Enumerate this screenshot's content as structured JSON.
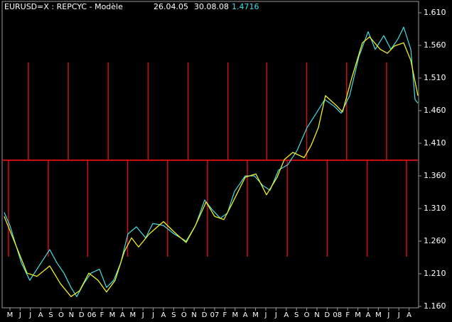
{
  "chart_data": {
    "type": "line",
    "title": "EURUSD=X : REPCYC - Modèle",
    "start_date": "26.04.05",
    "end_date": "30.08.08",
    "last_value": 1.4716,
    "xlim": [
      -0.76,
      39.93
    ],
    "ylim": [
      1.1578,
      1.6274
    ],
    "xticks": [
      {
        "value": 0,
        "label": "M"
      },
      {
        "value": 1,
        "label": "J"
      },
      {
        "value": 2,
        "label": "J"
      },
      {
        "value": 3,
        "label": "A"
      },
      {
        "value": 4,
        "label": "S"
      },
      {
        "value": 5,
        "label": "O"
      },
      {
        "value": 6,
        "label": "N"
      },
      {
        "value": 7,
        "label": "D"
      },
      {
        "value": 8,
        "label": "06"
      },
      {
        "value": 9,
        "label": "F"
      },
      {
        "value": 10,
        "label": "M"
      },
      {
        "value": 11,
        "label": "A"
      },
      {
        "value": 12,
        "label": "M"
      },
      {
        "value": 13,
        "label": "J"
      },
      {
        "value": 14,
        "label": "J"
      },
      {
        "value": 15,
        "label": "A"
      },
      {
        "value": 16,
        "label": "S"
      },
      {
        "value": 17,
        "label": "O"
      },
      {
        "value": 18,
        "label": "N"
      },
      {
        "value": 19,
        "label": "D"
      },
      {
        "value": 20,
        "label": "07"
      },
      {
        "value": 21,
        "label": "F"
      },
      {
        "value": 22,
        "label": "M"
      },
      {
        "value": 23,
        "label": "A"
      },
      {
        "value": 24,
        "label": "M"
      },
      {
        "value": 25,
        "label": "J"
      },
      {
        "value": 26,
        "label": "J"
      },
      {
        "value": 27,
        "label": "A"
      },
      {
        "value": 28,
        "label": "S"
      },
      {
        "value": 29,
        "label": "O"
      },
      {
        "value": 30,
        "label": "N"
      },
      {
        "value": 31,
        "label": "D"
      },
      {
        "value": 32,
        "label": "08"
      },
      {
        "value": 33,
        "label": "F"
      },
      {
        "value": 34,
        "label": "M"
      },
      {
        "value": 35,
        "label": "A"
      },
      {
        "value": 36,
        "label": "M"
      },
      {
        "value": 37,
        "label": "J"
      },
      {
        "value": 38,
        "label": "J"
      },
      {
        "value": 39,
        "label": "A"
      }
    ],
    "yticks": [
      {
        "value": 1.61,
        "label": "1.610"
      },
      {
        "value": 1.56,
        "label": "1.560"
      },
      {
        "value": 1.51,
        "label": "1.510"
      },
      {
        "value": 1.46,
        "label": "1.460"
      },
      {
        "value": 1.41,
        "label": "1.410"
      },
      {
        "value": 1.36,
        "label": "1.360"
      },
      {
        "value": 1.31,
        "label": "1.310"
      },
      {
        "value": 1.26,
        "label": "1.260"
      },
      {
        "value": 1.21,
        "label": "1.210"
      },
      {
        "value": 1.16,
        "label": "1.160"
      }
    ],
    "series": [
      {
        "color": "#40e0e8",
        "x": [
          -0.56,
          0,
          1.11,
          1.94,
          2.85,
          3.89,
          4.58,
          5.28,
          5.97,
          6.53,
          7.22,
          7.92,
          8.75,
          9.44,
          10.14,
          10.83,
          11.53,
          12.36,
          13.26,
          13.96,
          15.0,
          16.04,
          17.22,
          18.13,
          19.03,
          19.72,
          20.56,
          21.25,
          21.94,
          22.99,
          23.89,
          24.72,
          25.42,
          26.25,
          27.15,
          28.06,
          29.03,
          29.93,
          30.76,
          31.67,
          32.36,
          33.19,
          34.1,
          35.0,
          35.69,
          36.53,
          37.22,
          37.92,
          38.47,
          39.17,
          39.58,
          39.86
        ],
        "values": [
          1.304,
          1.284,
          1.227,
          1.2,
          1.222,
          1.247,
          1.227,
          1.211,
          1.189,
          1.175,
          1.195,
          1.211,
          1.217,
          1.189,
          1.2,
          1.227,
          1.271,
          1.282,
          1.265,
          1.287,
          1.284,
          1.271,
          1.26,
          1.284,
          1.323,
          1.309,
          1.295,
          1.303,
          1.336,
          1.36,
          1.36,
          1.345,
          1.338,
          1.369,
          1.377,
          1.399,
          1.434,
          1.456,
          1.477,
          1.467,
          1.456,
          1.483,
          1.543,
          1.581,
          1.554,
          1.575,
          1.554,
          1.57,
          1.588,
          1.554,
          1.477,
          1.4716
        ]
      },
      {
        "color": "#f0f020",
        "x": [
          -0.56,
          0.42,
          1.67,
          2.64,
          3.89,
          4.93,
          5.97,
          6.81,
          7.71,
          8.61,
          9.44,
          10.28,
          11.18,
          11.88,
          12.57,
          13.61,
          15.0,
          16.25,
          17.22,
          18.13,
          19.17,
          20.0,
          20.9,
          21.6,
          22.99,
          24.03,
          25.07,
          26.11,
          26.81,
          27.64,
          28.75,
          29.44,
          30.14,
          30.83,
          31.81,
          32.5,
          33.4,
          34.44,
          35.14,
          36.18,
          36.88,
          37.57,
          38.47,
          39.17,
          39.86
        ],
        "values": [
          1.298,
          1.26,
          1.211,
          1.206,
          1.222,
          1.195,
          1.175,
          1.184,
          1.211,
          1.2,
          1.182,
          1.2,
          1.244,
          1.265,
          1.251,
          1.271,
          1.29,
          1.271,
          1.258,
          1.284,
          1.32,
          1.298,
          1.293,
          1.314,
          1.358,
          1.363,
          1.331,
          1.358,
          1.385,
          1.396,
          1.388,
          1.407,
          1.434,
          1.483,
          1.469,
          1.458,
          1.51,
          1.564,
          1.573,
          1.554,
          1.548,
          1.559,
          1.564,
          1.537,
          1.483
        ]
      }
    ],
    "cycle_lines": {
      "color": "#d01010",
      "level": 1.384,
      "x": [
        -0.14,
        1.8,
        3.75,
        5.7,
        7.6,
        9.6,
        11.5,
        13.5,
        15.4,
        17.4,
        19.3,
        21.3,
        23.2,
        25.1,
        27.1,
        29.0,
        31.0,
        32.9,
        34.9,
        36.8,
        38.75
      ],
      "ends": [
        1.236,
        1.534,
        1.236,
        1.534,
        1.236,
        1.534,
        1.236,
        1.534,
        1.236,
        1.534,
        1.236,
        1.534,
        1.236,
        1.534,
        1.236,
        1.534,
        1.236,
        1.534,
        1.236,
        1.534,
        1.236
      ]
    }
  }
}
